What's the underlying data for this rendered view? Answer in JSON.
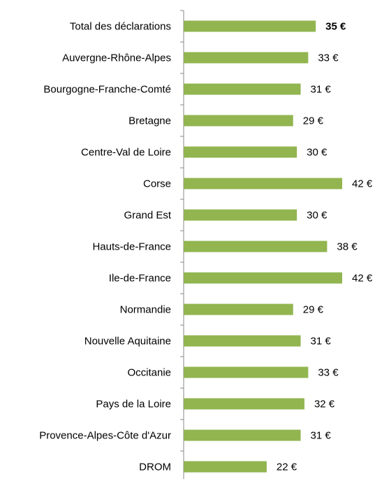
{
  "chart_data": {
    "type": "barh",
    "categories": [
      "Total des déclarations",
      "Auvergne-Rhône-Alpes",
      "Bourgogne-Franche-Comté",
      "Bretagne",
      "Centre-Val de Loire",
      "Corse",
      "Grand Est",
      "Hauts-de-France",
      "Ile-de-France",
      "Normandie",
      "Nouvelle Aquitaine",
      "Occitanie",
      "Pays de la Loire",
      "Provence-Alpes-Côte d'Azur",
      "DROM"
    ],
    "values": [
      35,
      33,
      31,
      29,
      30,
      42,
      30,
      38,
      42,
      29,
      31,
      33,
      32,
      31,
      22
    ],
    "value_labels": [
      "35 €",
      "33 €",
      "31 €",
      "29 €",
      "30 €",
      "42 €",
      "30 €",
      "38 €",
      "42 €",
      "29 €",
      "31 €",
      "33 €",
      "32 €",
      "31 €",
      "22 €"
    ],
    "color": "#92b550"
  }
}
